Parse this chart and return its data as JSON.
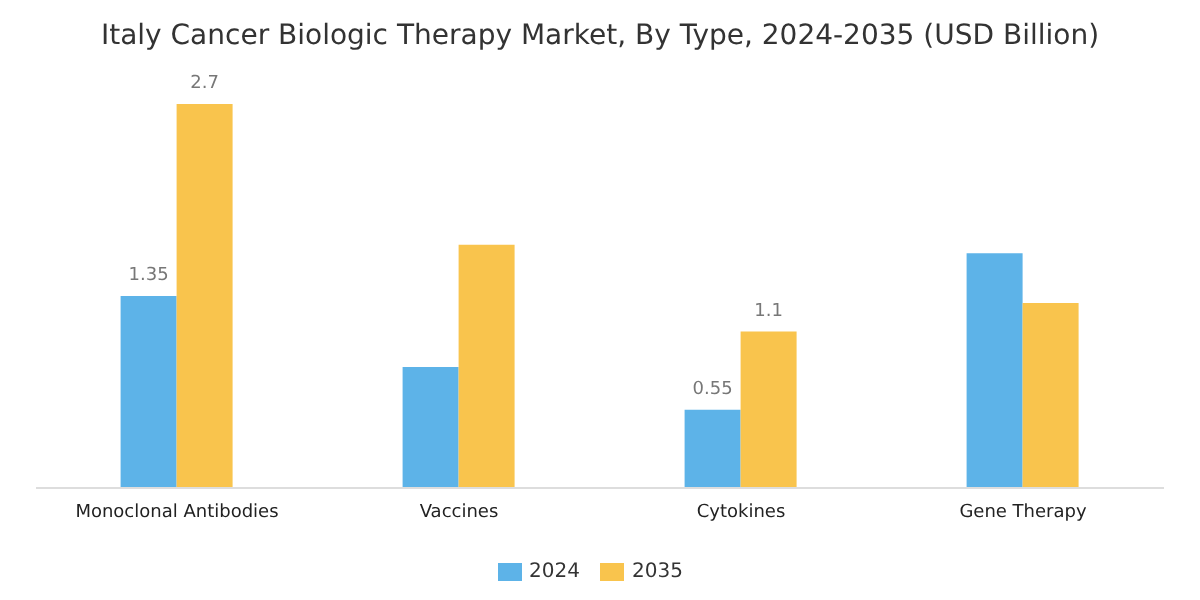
{
  "chart_data": {
    "type": "bar",
    "title": "Italy Cancer Biologic Therapy Market, By Type, 2024-2035 (USD Billion)",
    "categories": [
      "Monoclonal Antibodies",
      "Vaccines",
      "Cytokines",
      "Gene Therapy"
    ],
    "series": [
      {
        "name": "2024",
        "color": "#5db3e8",
        "values": [
          1.35,
          0.85,
          0.55,
          1.65
        ],
        "value_labels": [
          "1.35",
          null,
          "0.55",
          null
        ]
      },
      {
        "name": "2035",
        "color": "#f9c44d",
        "values": [
          2.7,
          1.71,
          1.1,
          1.3
        ],
        "value_labels": [
          "2.7",
          null,
          "1.1",
          null
        ]
      }
    ],
    "grid": false,
    "legend": "bottom"
  }
}
